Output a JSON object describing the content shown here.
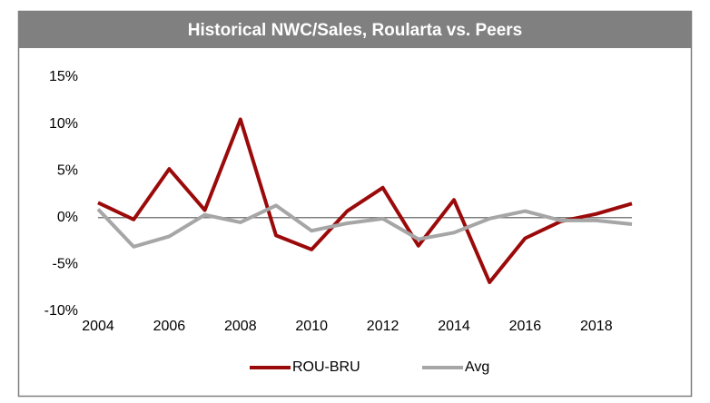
{
  "chart_data": {
    "type": "line",
    "title": "Historical NWC/Sales, Roularta vs. Peers",
    "x": [
      2004,
      2005,
      2006,
      2007,
      2008,
      2009,
      2010,
      2011,
      2012,
      2013,
      2014,
      2015,
      2016,
      2017,
      2018,
      2019
    ],
    "series": [
      {
        "name": "ROU-BRU",
        "color": "#9b0a0a",
        "values": [
          1.6,
          -0.2,
          5.2,
          0.8,
          10.5,
          -1.9,
          -3.4,
          0.7,
          3.2,
          -3.0,
          1.9,
          -6.9,
          -2.2,
          -0.4,
          0.4,
          1.5
        ]
      },
      {
        "name": "Avg",
        "color": "#a6a6a6",
        "values": [
          0.9,
          -3.1,
          -2.0,
          0.3,
          -0.5,
          1.3,
          -1.4,
          -0.6,
          -0.1,
          -2.3,
          -1.6,
          -0.1,
          0.7,
          -0.3,
          -0.3,
          -0.7
        ]
      }
    ],
    "xlim": [
      2004,
      2019
    ],
    "xticks": [
      2004,
      2006,
      2008,
      2010,
      2012,
      2014,
      2016,
      2018
    ],
    "ylim": [
      -10,
      15
    ],
    "yticks": [
      {
        "value": -10,
        "label": "-10%"
      },
      {
        "value": -5,
        "label": "-5%"
      },
      {
        "value": 0,
        "label": "0%"
      },
      {
        "value": 5,
        "label": "5%"
      },
      {
        "value": 10,
        "label": "10%"
      },
      {
        "value": 15,
        "label": "15%"
      }
    ],
    "legend": "bottom"
  }
}
